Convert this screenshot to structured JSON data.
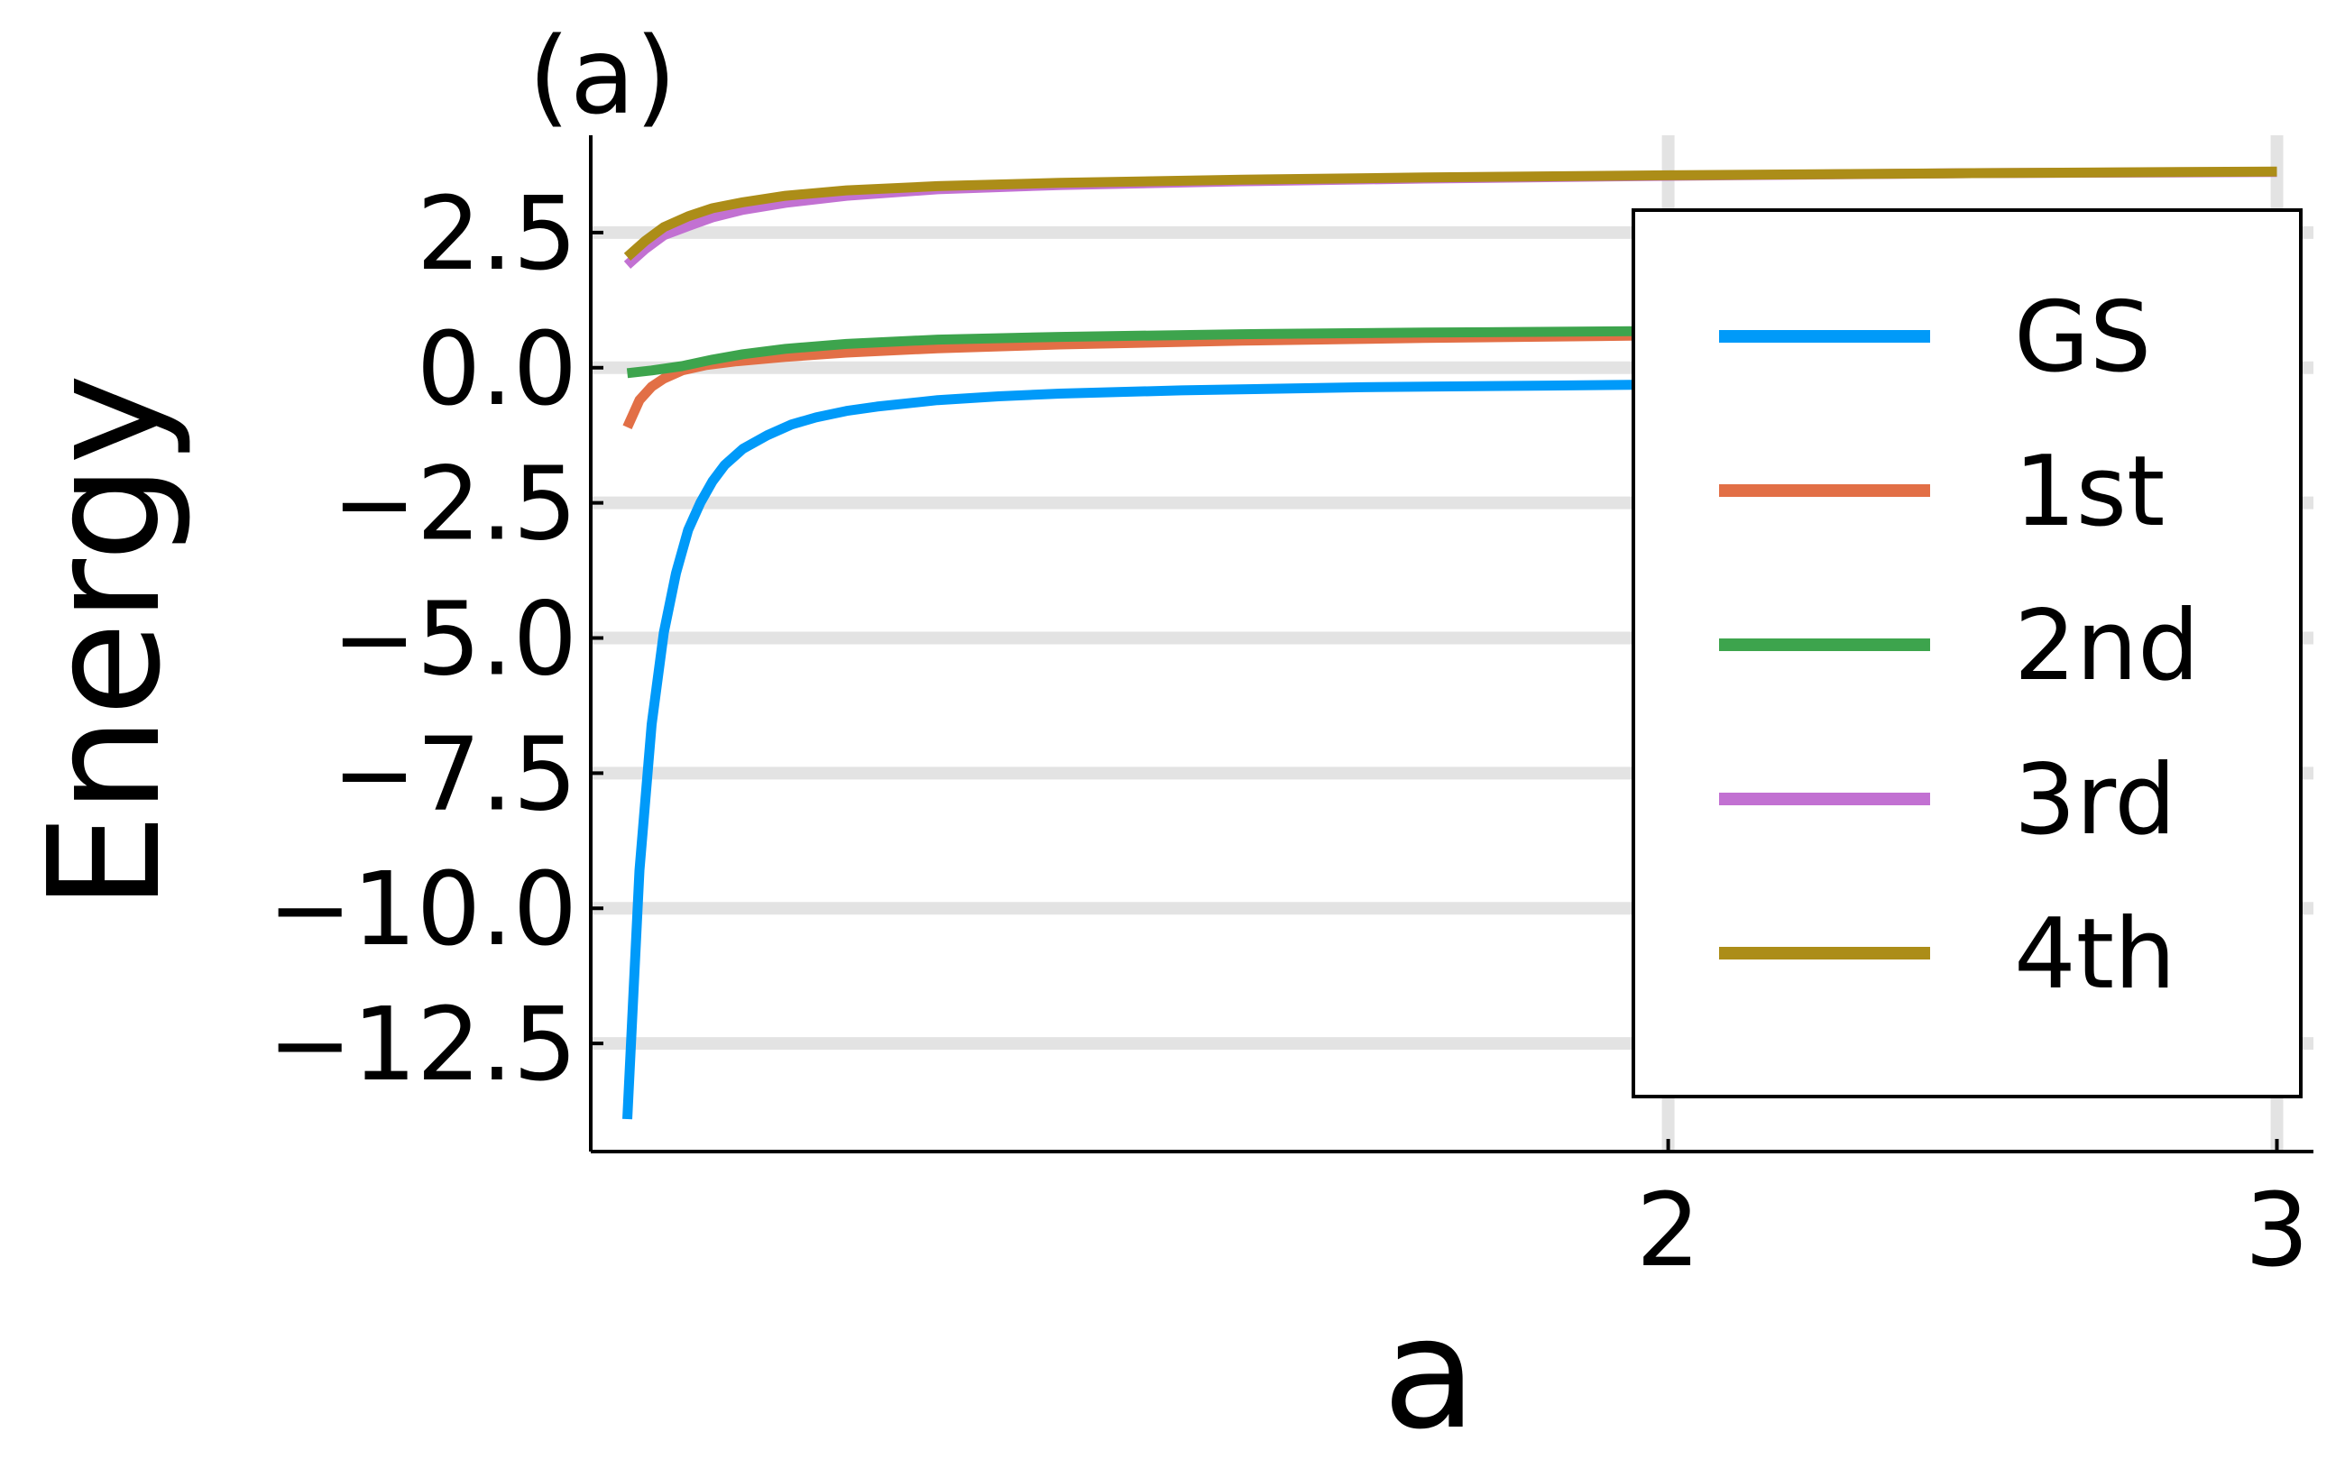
{
  "panel_label": "(a)",
  "chart_data": {
    "type": "line",
    "xlabel": "a",
    "ylabel": "Energy",
    "xlim": [
      0.23,
      3.06
    ],
    "ylim": [
      -14.5,
      4.3
    ],
    "xticks": [
      2,
      3
    ],
    "yticks": [
      2.5,
      0.0,
      -2.5,
      -5.0,
      -7.5,
      -10.0,
      -12.5
    ],
    "xtick_labels": [
      "2",
      "3"
    ],
    "ytick_labels": [
      "2.5",
      "0.0",
      "−2.5",
      "−5.0",
      "−7.5",
      "−10.0",
      "−12.5"
    ],
    "grid": true,
    "legend_position": "top-right",
    "series": [
      {
        "name": "GS",
        "color": "#009af9",
        "x": [
          0.29,
          0.31,
          0.33,
          0.35,
          0.37,
          0.39,
          0.41,
          0.43,
          0.45,
          0.48,
          0.52,
          0.56,
          0.6,
          0.65,
          0.7,
          0.8,
          0.9,
          1.0,
          1.2,
          1.5,
          1.8,
          2.0,
          2.3,
          2.6,
          3.0
        ],
        "values": [
          -13.9,
          -9.3,
          -6.6,
          -4.9,
          -3.8,
          -3.0,
          -2.5,
          -2.1,
          -1.8,
          -1.5,
          -1.25,
          -1.05,
          -0.92,
          -0.8,
          -0.72,
          -0.6,
          -0.53,
          -0.48,
          -0.42,
          -0.36,
          -0.33,
          -0.31,
          -0.29,
          -0.27,
          -0.25
        ]
      },
      {
        "name": "1st",
        "color": "#e26f46",
        "x": [
          0.29,
          0.31,
          0.33,
          0.35,
          0.38,
          0.42,
          0.47,
          0.55,
          0.65,
          0.8,
          1.0,
          1.3,
          1.6,
          2.0,
          2.5,
          3.0
        ],
        "values": [
          -1.1,
          -0.6,
          -0.35,
          -0.2,
          -0.05,
          0.05,
          0.12,
          0.2,
          0.28,
          0.36,
          0.43,
          0.5,
          0.55,
          0.6,
          0.63,
          0.66
        ]
      },
      {
        "name": "2nd",
        "color": "#3da44d",
        "x": [
          0.29,
          0.33,
          0.38,
          0.43,
          0.48,
          0.55,
          0.65,
          0.8,
          1.0,
          1.3,
          1.6,
          2.0,
          2.5,
          3.0
        ],
        "values": [
          -0.1,
          -0.05,
          0.03,
          0.15,
          0.25,
          0.35,
          0.44,
          0.52,
          0.57,
          0.62,
          0.65,
          0.68,
          0.7,
          0.72
        ]
      },
      {
        "name": "3rd",
        "color": "#c271d2",
        "x": [
          0.29,
          0.32,
          0.35,
          0.39,
          0.43,
          0.48,
          0.55,
          0.65,
          0.8,
          1.0,
          1.3,
          1.6,
          2.0,
          2.5,
          3.0
        ],
        "values": [
          1.9,
          2.2,
          2.45,
          2.62,
          2.78,
          2.92,
          3.05,
          3.18,
          3.3,
          3.38,
          3.45,
          3.5,
          3.55,
          3.6,
          3.62
        ]
      },
      {
        "name": "4th",
        "color": "#ac8d18",
        "x": [
          0.29,
          0.32,
          0.35,
          0.39,
          0.43,
          0.48,
          0.55,
          0.65,
          0.8,
          1.0,
          1.3,
          1.6,
          2.0,
          2.5,
          3.0
        ],
        "values": [
          2.05,
          2.35,
          2.6,
          2.8,
          2.95,
          3.06,
          3.18,
          3.28,
          3.36,
          3.42,
          3.48,
          3.52,
          3.56,
          3.6,
          3.63
        ]
      }
    ]
  }
}
